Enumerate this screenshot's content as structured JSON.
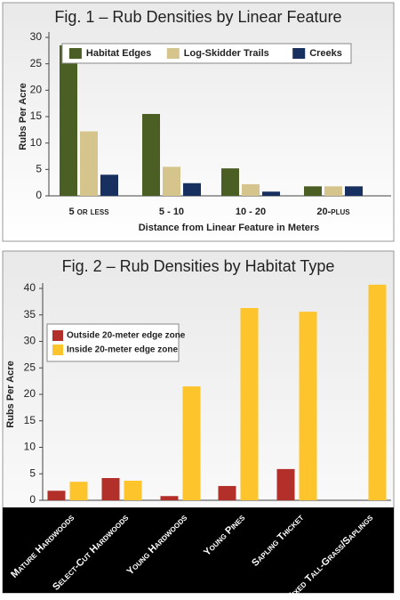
{
  "chart_data": [
    {
      "type": "bar",
      "title": "Fig. 1 – Rub Densities by Linear Feature",
      "y_label": "Rubs Per Acre",
      "x_label": "Distance from Linear Feature in Meters",
      "categories": [
        "5 or less",
        "5 - 10",
        "10 - 20",
        "20-plus"
      ],
      "series": [
        {
          "name": "Habitat Edges",
          "color": "#4b5e24",
          "values": [
            28.5,
            15.5,
            5.2,
            1.8
          ]
        },
        {
          "name": "Log-Skidder Trails",
          "color": "#d5c58c",
          "values": [
            12.2,
            5.5,
            2.2,
            1.8
          ]
        },
        {
          "name": "Creeks",
          "color": "#17305f",
          "values": [
            4,
            2.4,
            0.8,
            1.8
          ]
        }
      ],
      "ylim": [
        0,
        30
      ],
      "yticks": [
        0,
        5,
        10,
        15,
        20,
        25,
        30
      ],
      "legend": "top-right"
    },
    {
      "type": "bar",
      "title": "Fig. 2 – Rub Densities by Habitat Type",
      "y_label": "Rubs Per Acre",
      "categories": [
        "Mature Hardwoods",
        "Select-Cut Hardwoods",
        "Young Hardwoods",
        "Young Pines",
        "Sapling Thicket",
        "Mixed Tall-Grass/Saplings"
      ],
      "series": [
        {
          "name": "Outside 20-meter edge zone",
          "color": "#b3302a",
          "values": [
            1.8,
            4.2,
            0.8,
            2.7,
            5.9,
            null
          ]
        },
        {
          "name": "Inside 20-meter edge zone",
          "color": "#fdc42c",
          "values": [
            3.5,
            3.7,
            21.5,
            36.3,
            35.6,
            40.7
          ]
        }
      ],
      "ylim": [
        0,
        40
      ],
      "yticks": [
        0,
        5,
        10,
        15,
        20,
        25,
        30,
        35,
        40
      ],
      "legend": "upper-left"
    }
  ]
}
